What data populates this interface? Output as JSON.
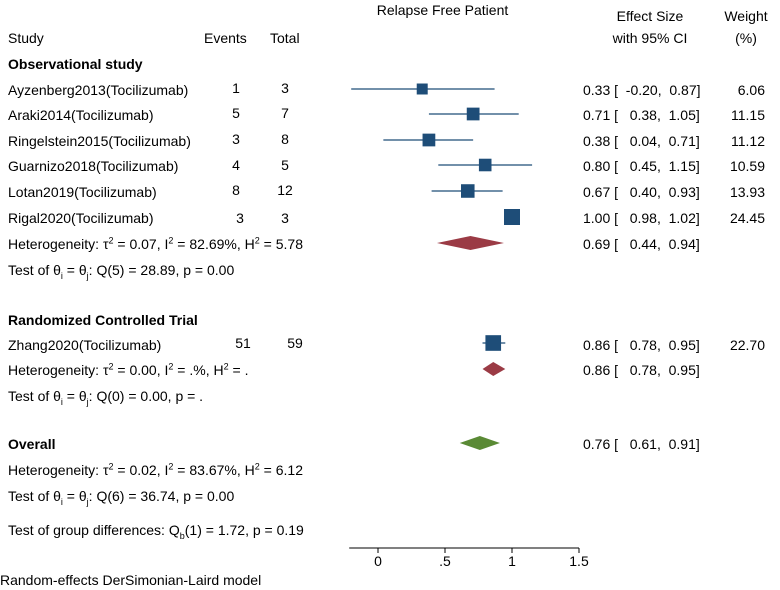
{
  "header": {
    "study": "Study",
    "events": "Events",
    "total": "Total",
    "plot_title": "Relapse Free Patient",
    "effect_line1": "Effect Size",
    "effect_line2": "with 95% CI",
    "weight_line1": "Weight",
    "weight_line2": "(%)"
  },
  "groups": {
    "observational": {
      "title": "Observational study",
      "heterogeneity": {
        "tau2": "0.07",
        "i2": "82.69%",
        "h2": "5.78"
      },
      "test": {
        "Q": "Q(5) = 28.89",
        "p": "p = 0.00"
      },
      "pooled_ci": "0.69 [   0.44,  0.94]"
    },
    "rct": {
      "title": "Randomized Controlled Trial",
      "heterogeneity": {
        "tau2": "0.00",
        "i2": ".%",
        "h2": "."
      },
      "test": {
        "Q": "Q(0) = 0.00",
        "p": "p = ."
      },
      "pooled_ci": "0.86 [   0.78,  0.95]"
    },
    "overall": {
      "title": "Overall",
      "heterogeneity": {
        "tau2": "0.02",
        "i2": "83.67%",
        "h2": "6.12"
      },
      "test": {
        "Q": "Q(6) = 36.74",
        "p": "p = 0.00"
      },
      "pooled_ci": "0.76 [   0.61,  0.91]"
    }
  },
  "rows": [
    {
      "study": "Ayzenberg2013(Tocilizumab)",
      "events": "1",
      "total": "3",
      "ci": "0.33 [  -0.20,  0.87]",
      "weight": "6.06"
    },
    {
      "study": "Araki2014(Tocilizumab)",
      "events": "5",
      "total": "7",
      "ci": "0.71 [   0.38,  1.05]",
      "weight": "11.15"
    },
    {
      "study": "Ringelstein2015(Tocilizumab)",
      "events": "3",
      "total": "8",
      "ci": "0.38 [   0.04,  0.71]",
      "weight": "11.12"
    },
    {
      "study": "Guarnizo2018(Tocilizumab)",
      "events": "4",
      "total": "5",
      "ci": "0.80 [   0.45,  1.15]",
      "weight": "10.59"
    },
    {
      "study": "Lotan2019(Tocilizumab)",
      "events": "8",
      "total": "12",
      "ci": "0.67 [   0.40,  0.93]",
      "weight": "13.93"
    },
    {
      "study": "Rigal2020(Tocilizumab)",
      "events": "3",
      "total": "3",
      "ci": "1.00 [   0.98,  1.02]",
      "weight": "24.45"
    },
    {
      "study": "Zhang2020(Tocilizumab)",
      "events": "51",
      "total": "59",
      "ci": "0.86 [   0.78,  0.95]",
      "weight": "22.70"
    }
  ],
  "group_diff": {
    "label": "Test of group differences: Q",
    "sub": "b",
    "rest": "(1) = 1.72, p = 0.19"
  },
  "footer": "Random-effects DerSimonian-Laird model",
  "chart_data": {
    "type": "forest",
    "title": "Relapse Free Patient",
    "xlim": [
      -0.2,
      1.5
    ],
    "ticks": [
      0,
      0.5,
      1,
      1.5
    ],
    "tick_labels": [
      "0",
      ".5",
      "1",
      "1.5"
    ],
    "studies": [
      {
        "name": "Ayzenberg2013(Tocilizumab)",
        "group": "Observational study",
        "est": 0.33,
        "lo": -0.2,
        "hi": 0.87,
        "weight": 6.06
      },
      {
        "name": "Araki2014(Tocilizumab)",
        "group": "Observational study",
        "est": 0.71,
        "lo": 0.38,
        "hi": 1.05,
        "weight": 11.15
      },
      {
        "name": "Ringelstein2015(Tocilizumab)",
        "group": "Observational study",
        "est": 0.38,
        "lo": 0.04,
        "hi": 0.71,
        "weight": 11.12
      },
      {
        "name": "Guarnizo2018(Tocilizumab)",
        "group": "Observational study",
        "est": 0.8,
        "lo": 0.45,
        "hi": 1.15,
        "weight": 10.59
      },
      {
        "name": "Lotan2019(Tocilizumab)",
        "group": "Observational study",
        "est": 0.67,
        "lo": 0.4,
        "hi": 0.93,
        "weight": 13.93
      },
      {
        "name": "Rigal2020(Tocilizumab)",
        "group": "Observational study",
        "est": 1.0,
        "lo": 0.98,
        "hi": 1.02,
        "weight": 24.45
      },
      {
        "name": "Zhang2020(Tocilizumab)",
        "group": "Randomized Controlled Trial",
        "est": 0.86,
        "lo": 0.78,
        "hi": 0.95,
        "weight": 22.7
      }
    ],
    "pooled": [
      {
        "name": "Observational study",
        "est": 0.69,
        "lo": 0.44,
        "hi": 0.94,
        "color": "#9b3b45"
      },
      {
        "name": "Randomized Controlled Trial",
        "est": 0.86,
        "lo": 0.78,
        "hi": 0.95,
        "color": "#9b3b45"
      },
      {
        "name": "Overall",
        "est": 0.76,
        "lo": 0.61,
        "hi": 0.91,
        "color": "#5a8a35"
      }
    ],
    "marker_color": "#1e4d78"
  }
}
